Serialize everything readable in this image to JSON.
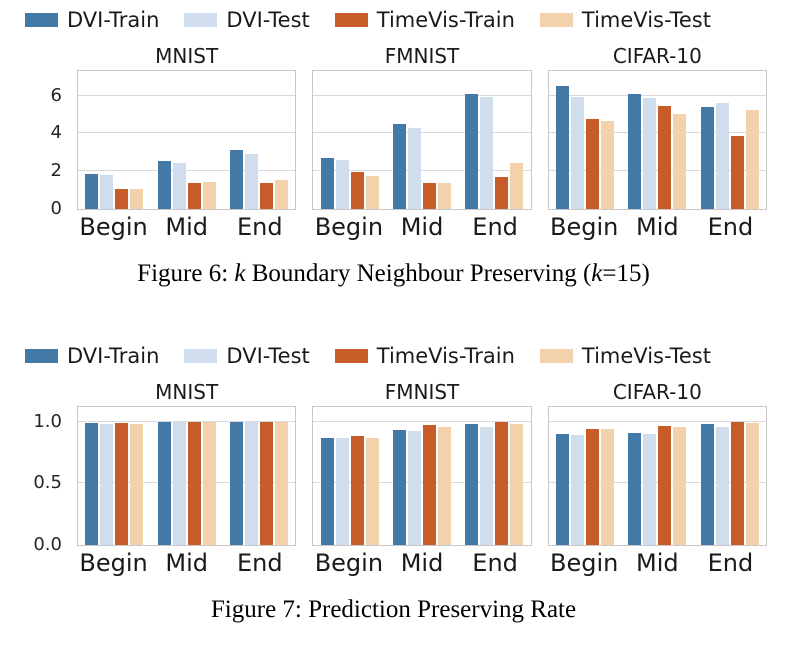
{
  "palette": {
    "dvi_train": "#4379a7",
    "dvi_test": "#d0ddec",
    "timevis_train": "#c85c29",
    "timevis_test": "#f3d1ad",
    "grid": "#d9d9d9",
    "frame": "#c8c8c8"
  },
  "chart_data": [
    {
      "type": "bar",
      "caption": "Figure 6: k Boundary Neighbour Preserving (k=15)",
      "caption_segments": [
        {
          "text": "Figure 6: ",
          "italic": false
        },
        {
          "text": "k",
          "italic": true
        },
        {
          "text": " Boundary Neighbour Preserving (",
          "italic": false
        },
        {
          "text": "k",
          "italic": true
        },
        {
          "text": "=15)",
          "italic": false
        }
      ],
      "legend": [
        {
          "name": "DVI-Train",
          "color_key": "dvi_train"
        },
        {
          "name": "DVI-Test",
          "color_key": "dvi_test"
        },
        {
          "name": "TimeVis-Train",
          "color_key": "timevis_train"
        },
        {
          "name": "TimeVis-Test",
          "color_key": "timevis_test"
        }
      ],
      "categories": [
        "Begin",
        "Mid",
        "End"
      ],
      "ylim": [
        0,
        7.3
      ],
      "grid": true,
      "yticks": [
        {
          "value": 0,
          "label": "0"
        },
        {
          "value": 2,
          "label": "2"
        },
        {
          "value": 4,
          "label": "4"
        },
        {
          "value": 6,
          "label": "6"
        }
      ],
      "panels": [
        {
          "title": "MNIST",
          "series": [
            {
              "name": "DVI-Train",
              "color_key": "dvi_train",
              "values": [
                1.85,
                2.55,
                3.1
              ]
            },
            {
              "name": "DVI-Test",
              "color_key": "dvi_test",
              "values": [
                1.8,
                2.45,
                2.9
              ]
            },
            {
              "name": "TimeVis-Train",
              "color_key": "timevis_train",
              "values": [
                1.05,
                1.35,
                1.4
              ]
            },
            {
              "name": "TimeVis-Test",
              "color_key": "timevis_test",
              "values": [
                1.05,
                1.45,
                1.55
              ]
            }
          ]
        },
        {
          "title": "FMNIST",
          "series": [
            {
              "name": "DVI-Train",
              "color_key": "dvi_train",
              "values": [
                2.7,
                4.5,
                6.1
              ]
            },
            {
              "name": "DVI-Test",
              "color_key": "dvi_test",
              "values": [
                2.6,
                4.3,
                5.9
              ]
            },
            {
              "name": "TimeVis-Train",
              "color_key": "timevis_train",
              "values": [
                1.95,
                1.35,
                1.7
              ]
            },
            {
              "name": "TimeVis-Test",
              "color_key": "timevis_test",
              "values": [
                1.75,
                1.4,
                2.45
              ]
            }
          ]
        },
        {
          "title": "CIFAR-10",
          "series": [
            {
              "name": "DVI-Train",
              "color_key": "dvi_train",
              "values": [
                6.5,
                6.1,
                5.4
              ]
            },
            {
              "name": "DVI-Test",
              "color_key": "dvi_test",
              "values": [
                5.95,
                5.85,
                5.6
              ]
            },
            {
              "name": "TimeVis-Train",
              "color_key": "timevis_train",
              "values": [
                4.75,
                5.45,
                3.85
              ]
            },
            {
              "name": "TimeVis-Test",
              "color_key": "timevis_test",
              "values": [
                4.65,
                5.05,
                5.25
              ]
            }
          ]
        }
      ]
    },
    {
      "type": "bar",
      "caption": "Figure 7: Prediction Preserving Rate",
      "caption_segments": [
        {
          "text": "Figure 7: Prediction Preserving Rate",
          "italic": false
        }
      ],
      "legend": [
        {
          "name": "DVI-Train",
          "color_key": "dvi_train"
        },
        {
          "name": "DVI-Test",
          "color_key": "dvi_test"
        },
        {
          "name": "TimeVis-Train",
          "color_key": "timevis_train"
        },
        {
          "name": "TimeVis-Test",
          "color_key": "timevis_test"
        }
      ],
      "categories": [
        "Begin",
        "Mid",
        "End"
      ],
      "ylim": [
        0,
        1.12
      ],
      "grid": true,
      "yticks": [
        {
          "value": 0,
          "label": "0.0"
        },
        {
          "value": 0.5,
          "label": "0.5"
        },
        {
          "value": 1.0,
          "label": "1.0"
        }
      ],
      "panels": [
        {
          "title": "MNIST",
          "series": [
            {
              "name": "DVI-Train",
              "color_key": "dvi_train",
              "values": [
                0.99,
                1.0,
                1.0
              ]
            },
            {
              "name": "DVI-Test",
              "color_key": "dvi_test",
              "values": [
                0.985,
                0.995,
                0.995
              ]
            },
            {
              "name": "TimeVis-Train",
              "color_key": "timevis_train",
              "values": [
                0.99,
                0.995,
                1.0
              ]
            },
            {
              "name": "TimeVis-Test",
              "color_key": "timevis_test",
              "values": [
                0.985,
                0.995,
                0.995
              ]
            }
          ]
        },
        {
          "title": "FMNIST",
          "series": [
            {
              "name": "DVI-Train",
              "color_key": "dvi_train",
              "values": [
                0.87,
                0.93,
                0.985
              ]
            },
            {
              "name": "DVI-Test",
              "color_key": "dvi_test",
              "values": [
                0.865,
                0.925,
                0.96
              ]
            },
            {
              "name": "TimeVis-Train",
              "color_key": "timevis_train",
              "values": [
                0.885,
                0.975,
                1.0
              ]
            },
            {
              "name": "TimeVis-Test",
              "color_key": "timevis_test",
              "values": [
                0.87,
                0.96,
                0.98
              ]
            }
          ]
        },
        {
          "title": "CIFAR-10",
          "series": [
            {
              "name": "DVI-Train",
              "color_key": "dvi_train",
              "values": [
                0.905,
                0.91,
                0.98
              ]
            },
            {
              "name": "DVI-Test",
              "color_key": "dvi_test",
              "values": [
                0.89,
                0.905,
                0.955
              ]
            },
            {
              "name": "TimeVis-Train",
              "color_key": "timevis_train",
              "values": [
                0.945,
                0.965,
                0.995
              ]
            },
            {
              "name": "TimeVis-Test",
              "color_key": "timevis_test",
              "values": [
                0.94,
                0.96,
                0.99
              ]
            }
          ]
        }
      ]
    }
  ]
}
